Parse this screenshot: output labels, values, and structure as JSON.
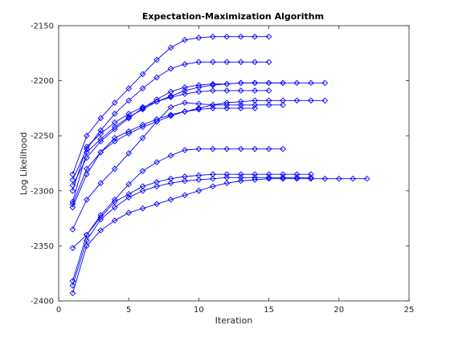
{
  "chart_data": {
    "type": "line",
    "title": "Expectation-Maximization Algorithm",
    "xlabel": "Iteration",
    "ylabel": "Log Likelihood",
    "xlim": [
      0,
      25
    ],
    "ylim": [
      -2400,
      -2150
    ],
    "xticks": [
      0,
      5,
      10,
      15,
      20,
      25
    ],
    "yticks": [
      -2400,
      -2350,
      -2300,
      -2250,
      -2200,
      -2150
    ],
    "xtick_labels": [
      "0",
      "5",
      "10",
      "15",
      "20",
      "25"
    ],
    "ytick_labels": [
      "-2400",
      "-2350",
      "-2300",
      "-2250",
      "-2200",
      "-2150"
    ],
    "grid": false,
    "legend": false,
    "color": "#0000ff",
    "marker": "diamond",
    "series": [
      {
        "x": [
          1,
          2,
          3,
          4,
          5,
          6,
          7,
          8,
          9,
          10,
          11,
          12,
          13,
          14,
          15
        ],
        "y": [
          -2285,
          -2250,
          -2234,
          -2220,
          -2207,
          -2194,
          -2181,
          -2170,
          -2163,
          -2161,
          -2160,
          -2160,
          -2160,
          -2160,
          -2160
        ]
      },
      {
        "x": [
          1,
          2,
          3,
          4,
          5,
          6,
          7,
          8,
          9,
          10,
          11,
          12,
          13,
          14,
          15
        ],
        "y": [
          -2290,
          -2262,
          -2245,
          -2230,
          -2218,
          -2207,
          -2197,
          -2189,
          -2185,
          -2183,
          -2183,
          -2183,
          -2183,
          -2183,
          -2183
        ]
      },
      {
        "x": [
          1,
          2,
          3,
          4,
          5,
          6,
          7,
          8,
          9,
          10,
          11,
          12,
          13,
          14,
          15,
          16,
          17,
          18,
          19
        ],
        "y": [
          -2295,
          -2270,
          -2255,
          -2244,
          -2234,
          -2225,
          -2217,
          -2210,
          -2206,
          -2204,
          -2203,
          -2203,
          -2202,
          -2202,
          -2202,
          -2202,
          -2202,
          -2202,
          -2202
        ]
      },
      {
        "x": [
          1,
          2,
          3,
          4,
          5,
          6,
          7,
          8,
          9,
          10,
          11,
          12,
          13,
          14,
          15,
          16
        ],
        "y": [
          -2310,
          -2265,
          -2253,
          -2242,
          -2233,
          -2226,
          -2219,
          -2214,
          -2209,
          -2206,
          -2204,
          -2203,
          -2202,
          -2202,
          -2202,
          -2202
        ]
      },
      {
        "x": [
          1,
          2,
          3,
          4,
          5,
          6,
          7,
          8,
          9,
          10,
          11,
          12,
          13,
          14,
          15
        ],
        "y": [
          -2300,
          -2260,
          -2248,
          -2238,
          -2230,
          -2224,
          -2219,
          -2215,
          -2212,
          -2210,
          -2209,
          -2209,
          -2209,
          -2209,
          -2209
        ]
      },
      {
        "x": [
          1,
          2,
          3,
          4,
          5,
          6,
          7,
          8,
          9,
          10,
          11,
          12,
          13,
          14,
          15,
          16,
          17,
          18,
          19
        ],
        "y": [
          -2312,
          -2280,
          -2265,
          -2255,
          -2248,
          -2242,
          -2237,
          -2232,
          -2228,
          -2225,
          -2222,
          -2220,
          -2219,
          -2218,
          -2218,
          -2218,
          -2218,
          -2218,
          -2218
        ]
      },
      {
        "x": [
          1,
          2,
          3,
          4,
          5,
          6,
          7,
          8,
          9,
          10,
          11,
          12,
          13,
          14
        ],
        "y": [
          -2315,
          -2285,
          -2265,
          -2252,
          -2246,
          -2240,
          -2235,
          -2231,
          -2228,
          -2226,
          -2225,
          -2225,
          -2225,
          -2225
        ]
      },
      {
        "x": [
          1,
          2,
          3,
          4,
          5,
          6,
          7,
          8,
          9,
          10,
          11,
          12,
          13,
          14,
          15,
          16
        ],
        "y": [
          -2335,
          -2308,
          -2293,
          -2280,
          -2266,
          -2252,
          -2237,
          -2224,
          -2220,
          -2221,
          -2222,
          -2222,
          -2222,
          -2222,
          -2222,
          -2222
        ]
      },
      {
        "x": [
          1,
          2,
          3,
          4,
          5,
          6,
          7,
          8,
          9,
          10,
          11,
          12,
          13,
          14,
          15,
          16
        ],
        "y": [
          -2352,
          -2340,
          -2322,
          -2308,
          -2294,
          -2282,
          -2274,
          -2268,
          -2263,
          -2262,
          -2262,
          -2262,
          -2262,
          -2262,
          -2262,
          -2262
        ]
      },
      {
        "x": [
          1,
          2,
          3,
          4,
          5,
          6,
          7,
          8,
          9,
          10,
          11,
          12,
          13,
          14,
          15,
          16,
          17,
          18
        ],
        "y": [
          -2382,
          -2340,
          -2324,
          -2310,
          -2303,
          -2296,
          -2292,
          -2289,
          -2287,
          -2286,
          -2285,
          -2285,
          -2285,
          -2285,
          -2285,
          -2285,
          -2285,
          -2285
        ]
      },
      {
        "x": [
          1,
          2,
          3,
          4,
          5,
          6,
          7,
          8,
          9,
          10,
          11,
          12,
          13,
          14,
          15,
          16,
          17,
          18
        ],
        "y": [
          -2386,
          -2345,
          -2326,
          -2315,
          -2306,
          -2300,
          -2296,
          -2293,
          -2291,
          -2290,
          -2289,
          -2288,
          -2288,
          -2288,
          -2288,
          -2288,
          -2288,
          -2288
        ]
      },
      {
        "x": [
          1,
          2,
          3,
          4,
          5,
          6,
          7,
          8,
          9,
          10,
          11,
          12,
          13,
          14,
          15,
          16,
          17,
          18,
          19,
          20,
          21,
          22
        ],
        "y": [
          -2393,
          -2350,
          -2336,
          -2327,
          -2320,
          -2316,
          -2312,
          -2308,
          -2304,
          -2300,
          -2296,
          -2293,
          -2291,
          -2290,
          -2289,
          -2289,
          -2289,
          -2289,
          -2289,
          -2289,
          -2289,
          -2289
        ]
      }
    ]
  }
}
